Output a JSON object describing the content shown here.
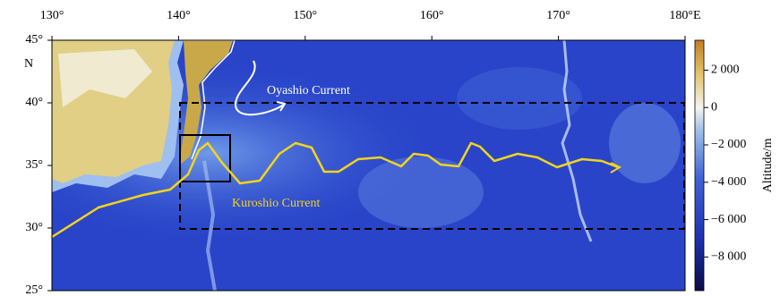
{
  "map": {
    "xlim": [
      130,
      180
    ],
    "ylim": [
      25,
      45
    ],
    "lon_ticks": [
      {
        "value": 130,
        "label": "130°"
      },
      {
        "value": 140,
        "label": "140°"
      },
      {
        "value": 150,
        "label": "150°"
      },
      {
        "value": 160,
        "label": "160°"
      },
      {
        "value": 170,
        "label": "170°"
      },
      {
        "value": 180,
        "label": "180°E"
      }
    ],
    "lat_ticks": [
      {
        "value": 45,
        "label": "45°"
      },
      {
        "value": 40,
        "label": "40°"
      },
      {
        "value": 35,
        "label": "35°"
      },
      {
        "value": 30,
        "label": "30°"
      },
      {
        "value": 25,
        "label": "25°"
      }
    ],
    "lat_hemisphere": "N",
    "annotations": {
      "oyashio": "Oyashio Current",
      "kuroshio": "Kuroshio Current"
    },
    "colorbar": {
      "label": "Altitude/m",
      "lim": [
        -9800,
        3600
      ],
      "ticks": [
        {
          "value": 2000,
          "label": "2 000"
        },
        {
          "value": 0,
          "label": "0"
        },
        {
          "value": -2000,
          "label": "−2 000"
        },
        {
          "value": -4000,
          "label": "−4 000"
        },
        {
          "value": -6000,
          "label": "−6 000"
        },
        {
          "value": -8000,
          "label": "−8 000"
        }
      ]
    }
  }
}
